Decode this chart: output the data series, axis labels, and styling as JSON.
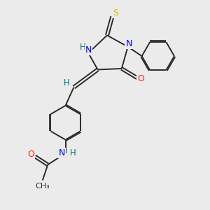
{
  "background_color": "#ebebeb",
  "bond_color": "#2a2a2a",
  "atom_colors": {
    "N": "#0000ff",
    "O": "#ff2200",
    "S": "#ccbb00",
    "H": "#007070",
    "C": "#2a2a2a"
  }
}
